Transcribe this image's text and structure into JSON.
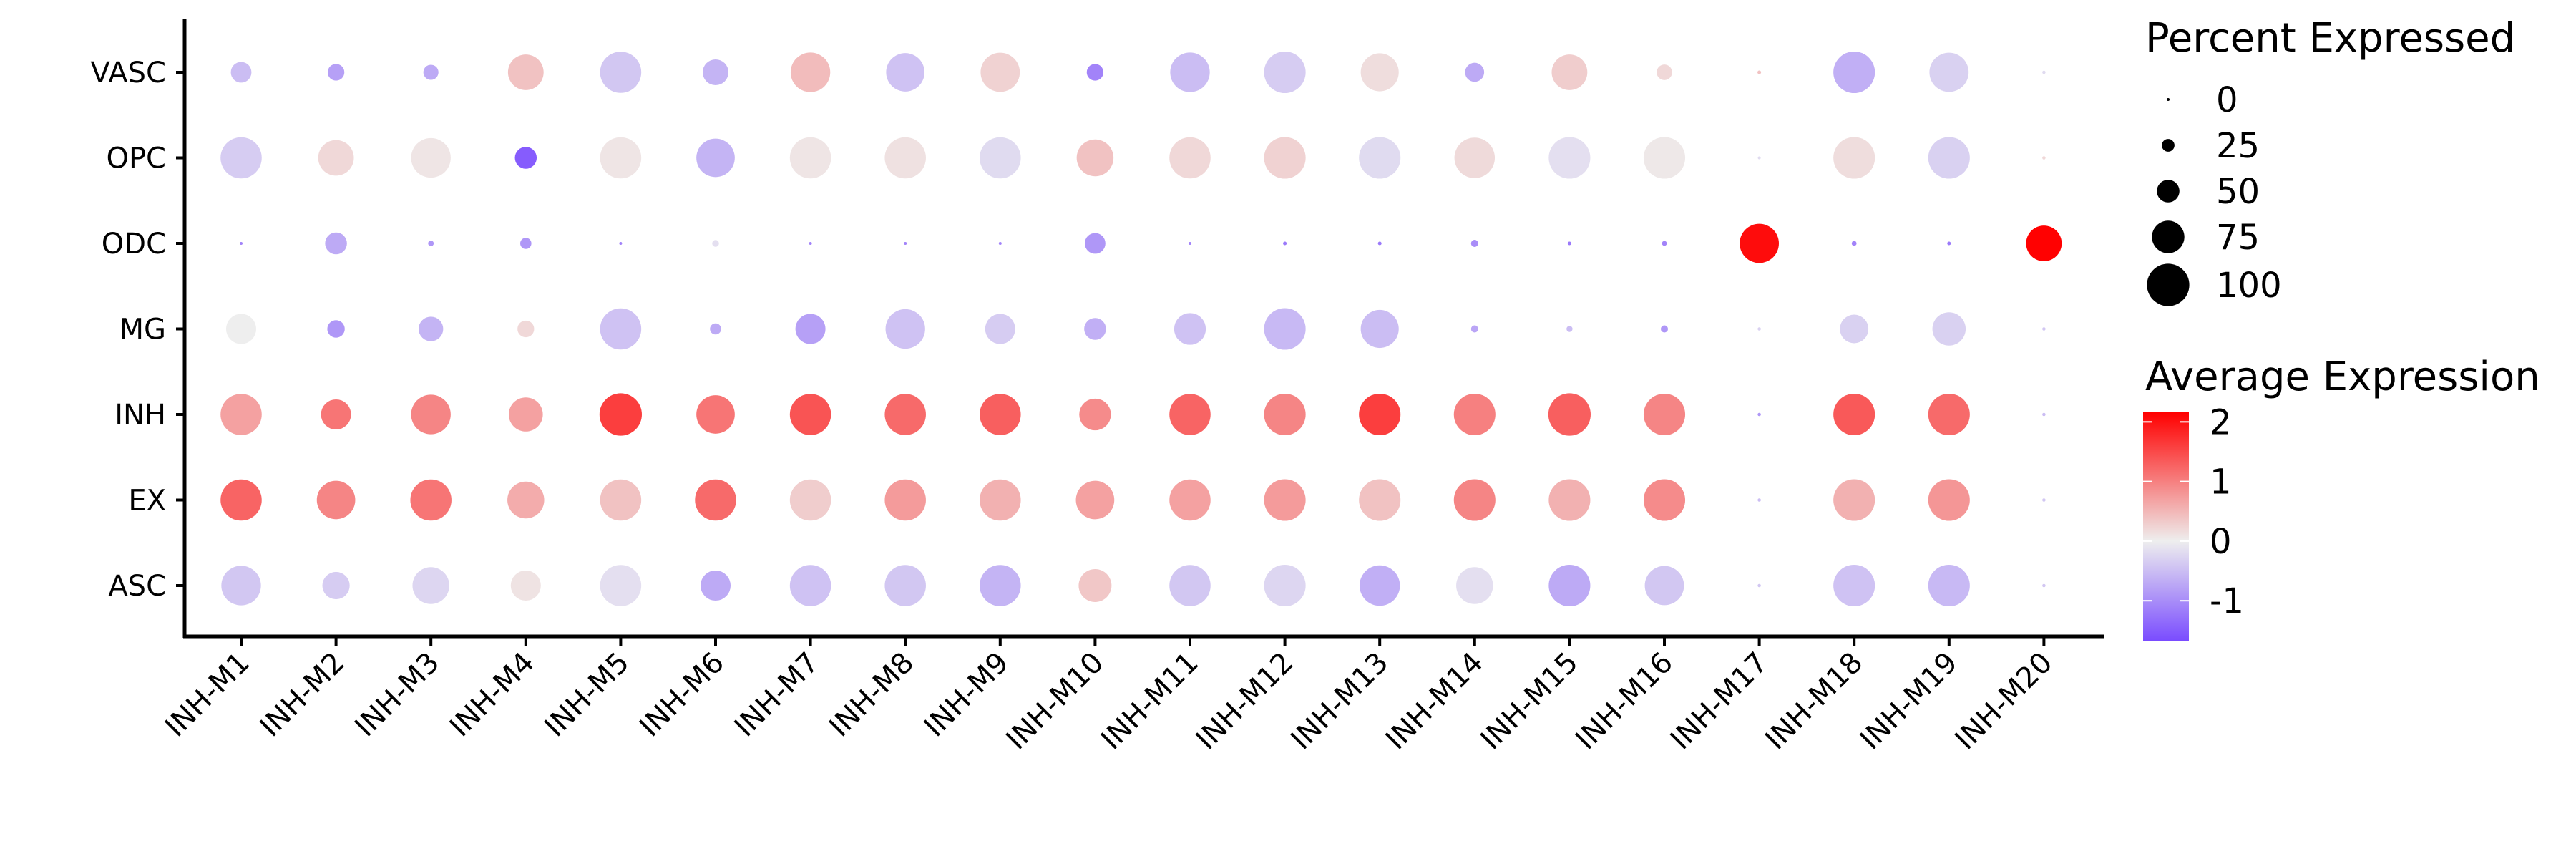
{
  "chart_data": {
    "type": "dotplot",
    "title": "",
    "xlabel": "",
    "ylabel": "",
    "x_categories": [
      "INH-M1",
      "INH-M2",
      "INH-M3",
      "INH-M4",
      "INH-M5",
      "INH-M6",
      "INH-M7",
      "INH-M8",
      "INH-M9",
      "INH-M10",
      "INH-M11",
      "INH-M12",
      "INH-M13",
      "INH-M14",
      "INH-M15",
      "INH-M16",
      "INH-M17",
      "INH-M18",
      "INH-M19",
      "INH-M20"
    ],
    "y_categories": [
      "VASC",
      "OPC",
      "ODC",
      "MG",
      "INH",
      "EX",
      "ASC"
    ],
    "percent_expressed": {
      "VASC": [
        45,
        35,
        31,
        83,
        97,
        58,
        93,
        90,
        92,
        35,
        93,
        98,
        89,
        41,
        83,
        32,
        2,
        98,
        92,
        1
      ],
      "OPC": [
        97,
        83,
        93,
        48,
        97,
        90,
        97,
        97,
        97,
        86,
        97,
        98,
        98,
        95,
        98,
        98,
        0,
        98,
        98,
        1
      ],
      "ODC": [
        0,
        48,
        7,
        21,
        0,
        10,
        0,
        0,
        0,
        45,
        0,
        2,
        2,
        11,
        2,
        5,
        92,
        5,
        2,
        83
      ],
      "MG": [
        69,
        37,
        55,
        35,
        97,
        21,
        69,
        93,
        69,
        48,
        73,
        98,
        89,
        11,
        8,
        11,
        1,
        65,
        77,
        1
      ],
      "INH": [
        97,
        69,
        93,
        79,
        100,
        90,
        97,
        97,
        97,
        73,
        97,
        98,
        98,
        98,
        100,
        98,
        1,
        98,
        98,
        1
      ],
      "EX": [
        97,
        90,
        97,
        86,
        97,
        97,
        97,
        97,
        97,
        90,
        97,
        98,
        98,
        98,
        98,
        98,
        1,
        98,
        98,
        1
      ],
      "ASC": [
        93,
        62,
        86,
        69,
        97,
        69,
        97,
        97,
        97,
        76,
        97,
        98,
        95,
        86,
        98,
        92,
        1,
        98,
        98,
        1
      ]
    },
    "average_expression": {
      "VASC": [
        -0.5,
        -0.8,
        -0.7,
        0.4,
        -0.4,
        -0.6,
        0.45,
        -0.45,
        0.25,
        -1.1,
        -0.5,
        -0.35,
        0.15,
        -0.7,
        0.3,
        0.2,
        0.4,
        -0.65,
        -0.3,
        -0.2
      ],
      "OPC": [
        -0.35,
        0.2,
        0.08,
        -1.5,
        0.08,
        -0.6,
        0.08,
        0.12,
        -0.2,
        0.4,
        0.2,
        0.25,
        -0.2,
        0.18,
        -0.15,
        0.05,
        -0.2,
        0.15,
        -0.3,
        0.2
      ],
      "ODC": [
        -1.1,
        -0.7,
        -0.9,
        -0.9,
        -1.1,
        -0.15,
        -1.1,
        -1.1,
        -1.1,
        -0.9,
        -1.1,
        -1.2,
        -1.2,
        -1.0,
        -1.2,
        -1.1,
        2.05,
        -1.1,
        -1.2,
        2.15
      ],
      "MG": [
        0.0,
        -0.9,
        -0.6,
        0.2,
        -0.45,
        -0.7,
        -0.8,
        -0.45,
        -0.35,
        -0.65,
        -0.45,
        -0.55,
        -0.5,
        -0.75,
        -0.5,
        -0.9,
        -0.3,
        -0.3,
        -0.3,
        -0.4
      ],
      "INH": [
        0.7,
        1.1,
        0.95,
        0.7,
        1.6,
        1.1,
        1.4,
        1.2,
        1.3,
        0.9,
        1.25,
        0.95,
        1.6,
        1.0,
        1.3,
        0.95,
        -0.9,
        1.35,
        1.2,
        -0.5
      ],
      "EX": [
        1.25,
        0.95,
        1.1,
        0.6,
        0.4,
        1.2,
        0.3,
        0.75,
        0.55,
        0.7,
        0.7,
        0.75,
        0.4,
        0.95,
        0.55,
        0.9,
        -0.5,
        0.55,
        0.8,
        -0.4
      ],
      "ASC": [
        -0.4,
        -0.35,
        -0.25,
        0.1,
        -0.15,
        -0.7,
        -0.45,
        -0.4,
        -0.6,
        0.35,
        -0.4,
        -0.25,
        -0.65,
        -0.15,
        -0.7,
        -0.4,
        -0.4,
        -0.45,
        -0.55,
        -0.4
      ]
    },
    "size_legend": {
      "title": "Percent Expressed",
      "breaks": [
        0,
        25,
        50,
        75,
        100
      ],
      "labels": [
        "0",
        "25",
        "50",
        "75",
        "100"
      ]
    },
    "color_legend": {
      "title": "Average Expression",
      "breaks": [
        2,
        1,
        0,
        -1
      ],
      "labels": [
        "2",
        "1",
        "0",
        "-1"
      ],
      "range": [
        -1.67,
        2.16
      ]
    },
    "colors": {
      "low": "#7A4CFF",
      "mid": "#EEEEEE",
      "high": "#FF0000",
      "axis": "#000000"
    },
    "grid": false
  }
}
